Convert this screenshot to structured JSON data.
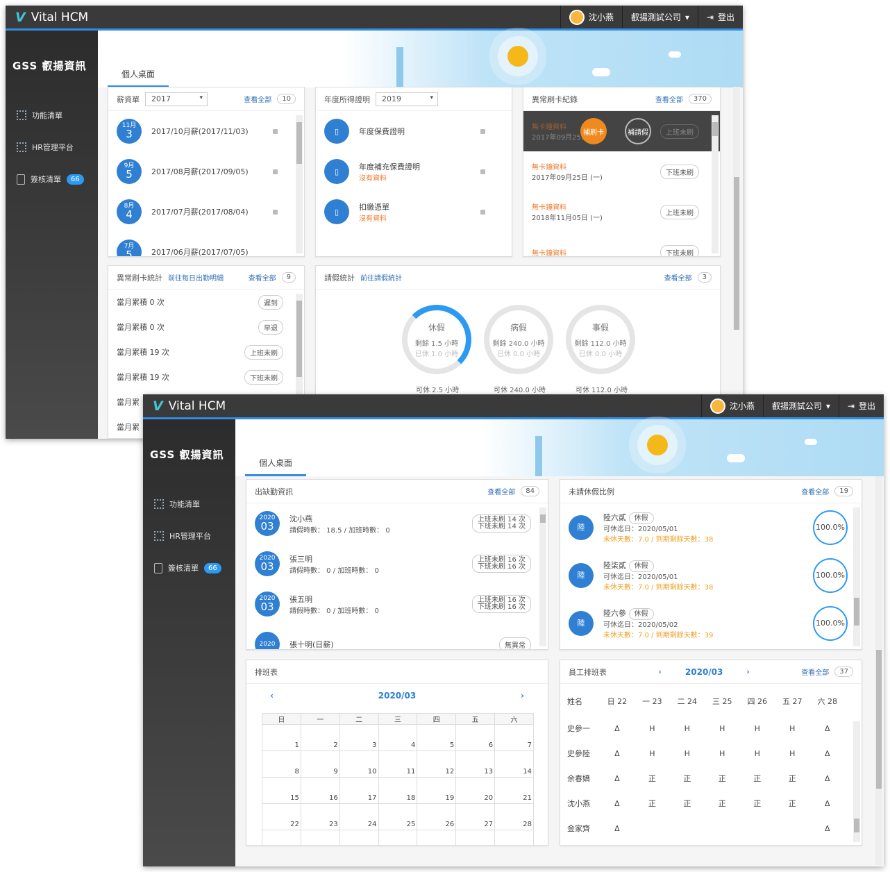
{
  "app": {
    "title": "Vital HCM",
    "user": "沈小燕",
    "company": "叡揚測試公司",
    "logout": "登出",
    "brand": "GSS 叡揚資訊",
    "tab": "個人桌面"
  },
  "sidebar": {
    "items": [
      {
        "label": "功能清單"
      },
      {
        "label": "HR管理平台"
      },
      {
        "label": "簽核清單",
        "badge": "66"
      }
    ]
  },
  "payslip": {
    "title": "薪資單",
    "year": "2017",
    "more": "查看全部",
    "count": "10",
    "items": [
      {
        "month": "11月",
        "day": "3",
        "label": "2017/10月薪(2017/11/03)"
      },
      {
        "month": "9月",
        "day": "5",
        "label": "2017/08月薪(2017/09/05)"
      },
      {
        "month": "8月",
        "day": "4",
        "label": "2017/07月薪(2017/08/04)"
      },
      {
        "month": "7月",
        "day": "5",
        "label": "2017/06月薪(2017/07/05)"
      }
    ]
  },
  "income": {
    "title": "年度所得證明",
    "year": "2019",
    "items": [
      {
        "label": "年度保費證明",
        "sub": ""
      },
      {
        "label": "年度補充保費證明",
        "sub": "沒有資料"
      },
      {
        "label": "扣繳憑單",
        "sub": "沒有資料"
      }
    ]
  },
  "abnormal": {
    "title": "異常刷卡紀錄",
    "more": "查看全部",
    "count": "370",
    "btn1": "補刷卡",
    "btn2": "補請假",
    "items": [
      {
        "title": "無卡鐘資料",
        "date": "2017年09月25日",
        "tag": "上班未刷"
      },
      {
        "title": "無卡鐘資料",
        "date": "2017年09月25日 (一)",
        "tag": "下班未刷"
      },
      {
        "title": "無卡鐘資料",
        "date": "2018年11月05日 (一)",
        "tag": "上班未刷"
      },
      {
        "title": "無卡鐘資料",
        "date": "",
        "tag": "下班未刷"
      }
    ]
  },
  "abstat": {
    "title": "異常刷卡統計",
    "link": "前往每日出勤明細",
    "more": "查看全部",
    "count": "9",
    "items": [
      {
        "label": "當月累積 0 次",
        "tag": "遲到"
      },
      {
        "label": "當月累積 0 次",
        "tag": "早退"
      },
      {
        "label": "當月累積 19 次",
        "tag": "上班未刷"
      },
      {
        "label": "當月累積 19 次",
        "tag": "下班未刷"
      },
      {
        "label": "當月累",
        "tag": ""
      },
      {
        "label": "當月累",
        "tag": ""
      }
    ]
  },
  "leave": {
    "title": "請假統計",
    "link": "前往請假統計",
    "more": "查看全部",
    "count": "3",
    "rings": [
      {
        "name": "休假",
        "remain": "剩餘 1.5 小時",
        "used": "已休 1.0 小時",
        "cap": "可休 2.5 小時",
        "frac": 0.4
      },
      {
        "name": "病假",
        "remain": "剩餘 240.0 小時",
        "used": "已休 0.0 小時",
        "cap": "可休 240.0 小時",
        "frac": 0
      },
      {
        "name": "事假",
        "remain": "剩餘 112.0 小時",
        "used": "已休 0.0 小時",
        "cap": "可休 112.0 小時",
        "frac": 0
      }
    ]
  },
  "attend": {
    "title": "出缺勤資訊",
    "more": "查看全部",
    "count": "84",
    "items": [
      {
        "y": "2020",
        "m": "03",
        "name": "沈小燕",
        "info": "請假時數： 18.5 / 加班時數： 0",
        "t1": "上班未刷 14 次",
        "t2": "下班未刷 14 次"
      },
      {
        "y": "2020",
        "m": "03",
        "name": "張三明",
        "info": "請假時數： 0 / 加班時數： 0",
        "t1": "上班未刷 16 次",
        "t2": "下班未刷 16 次"
      },
      {
        "y": "2020",
        "m": "03",
        "name": "張五明",
        "info": "請假時數： 0 / 加班時數： 0",
        "t1": "上班未刷 16 次",
        "t2": "下班未刷 16 次"
      },
      {
        "y": "2020",
        "m": "",
        "name": "張十明(日薪)",
        "info": "",
        "t1": "無異常",
        "t2": ""
      }
    ]
  },
  "unused": {
    "title": "未請休假比例",
    "more": "查看全部",
    "count": "19",
    "items": [
      {
        "av": "陸",
        "name": "陸六貳",
        "tag": "休假",
        "date": "可休迄日：2020/05/01",
        "warn": "未休天數：7.0 / 到期剩餘天數：38",
        "pct": "100.0%"
      },
      {
        "av": "陸",
        "name": "陸柒貳",
        "tag": "休假",
        "date": "可休迄日：2020/05/01",
        "warn": "未休天數：7.0 / 到期剩餘天數：38",
        "pct": "100.0%"
      },
      {
        "av": "陸",
        "name": "陸六參",
        "tag": "休假",
        "date": "可休迄日：2020/05/02",
        "warn": "未休天數：7.0 / 到期剩餘天數：39",
        "pct": "100.0%"
      }
    ]
  },
  "shift": {
    "title": "排班表",
    "month": "2020/03",
    "weekdays": [
      "日",
      "一",
      "二",
      "三",
      "四",
      "五",
      "六"
    ]
  },
  "empshift": {
    "title": "員工排班表",
    "month": "2020/03",
    "more": "查看全部",
    "count": "37",
    "head": [
      "姓名",
      "日 22",
      "一 23",
      "二 24",
      "三 25",
      "四 26",
      "五 27",
      "六 28"
    ],
    "rows": [
      [
        "史參一",
        "Δ",
        "H",
        "H",
        "H",
        "H",
        "H",
        "Δ"
      ],
      [
        "史參陸",
        "Δ",
        "H",
        "H",
        "H",
        "H",
        "H",
        "Δ"
      ],
      [
        "余春嬌",
        "Δ",
        "正",
        "正",
        "正",
        "正",
        "正",
        "Δ"
      ],
      [
        "沈小燕",
        "Δ",
        "正",
        "正",
        "正",
        "正",
        "正",
        "Δ"
      ],
      [
        "金家齊",
        "Δ",
        "",
        "",
        "",
        "",
        "",
        "Δ"
      ]
    ]
  }
}
